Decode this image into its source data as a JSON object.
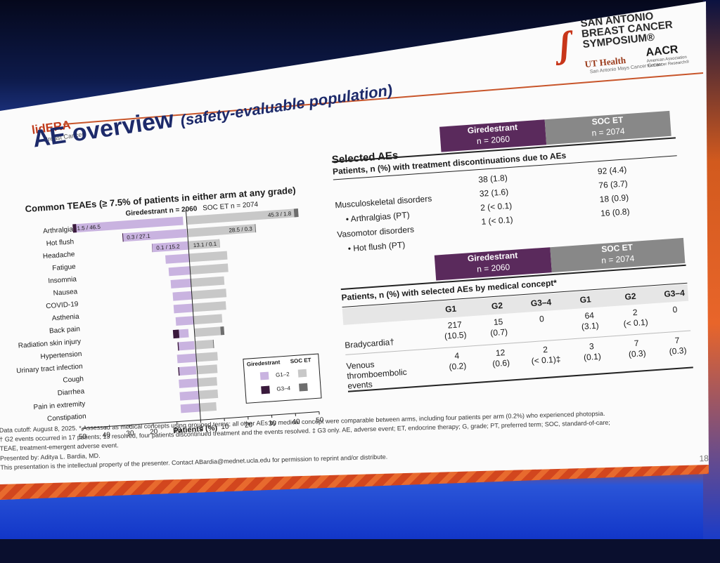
{
  "slide": {
    "brand": "lidERA",
    "brand_sub": "Breast Cancer",
    "title": "AE overview",
    "title_italic": "(safety-evaluable population)",
    "page_number": "18"
  },
  "sabcs": {
    "name_line1": "SAN ANTONIO",
    "name_line2": "BREAST CANCER",
    "name_line3": "SYMPOSIUM®",
    "uthealth": "UT Health",
    "uthealth_sub": "San Antonio Mays Cancer Center",
    "aacr": "AACR",
    "aacr_sub": "American Association for Cancer Research®"
  },
  "chart_data": {
    "type": "bar",
    "title": "Common TEAEs (≥ 7.5% of patients in either arm at any grade)",
    "xlabel": "Patients (%)",
    "xlim": [
      -50,
      50
    ],
    "xticks": [
      "50",
      "40",
      "30",
      "20",
      "10",
      "0",
      "10",
      "20",
      "30",
      "40",
      "50"
    ],
    "arm_left_label": "Giredestrant n = 2060",
    "arm_right_label": "SOC ET n = 2074",
    "legend": {
      "left_title": "Giredestrant",
      "right_title": "SOC ET",
      "g12_label": "G1–2",
      "g34_label": "G3–4"
    },
    "colors": {
      "gir_g12": "#c9b3e0",
      "gir_g34": "#3a1a3c",
      "soc_g12": "#c8c8c8",
      "soc_g34": "#6e6e6e"
    },
    "categories": [
      "Arthralgia",
      "Hot flush",
      "Headache",
      "Fatigue",
      "Insomnia",
      "Nausea",
      "COVID-19",
      "Asthenia",
      "Back pain",
      "Radiation skin injury",
      "Hypertension",
      "Urinary tract infection",
      "Cough",
      "Diarrhea",
      "Pain in extremity",
      "Constipation"
    ],
    "series": [
      {
        "name": "Giredestrant G1–2",
        "values": [
          46.5,
          27.1,
          15.2,
          10,
          9,
          8.5,
          8,
          8,
          7.5,
          6.5,
          7,
          8,
          7.5,
          8,
          8,
          8
        ]
      },
      {
        "name": "Giredestrant G3–4",
        "values": [
          1.5,
          0.3,
          0.1,
          0,
          0,
          0,
          0,
          0,
          0,
          2.5,
          0.4,
          0,
          0.4,
          0,
          0,
          0
        ]
      },
      {
        "name": "SOC ET G1–2",
        "values": [
          45.3,
          28.5,
          13.1,
          16,
          16,
          14,
          14.5,
          14,
          12,
          11,
          7.5,
          9,
          8.5,
          8,
          8,
          7
        ]
      },
      {
        "name": "SOC ET G3–4",
        "values": [
          1.8,
          0.3,
          0.1,
          0,
          0,
          0,
          0,
          0,
          0,
          1.5,
          0.3,
          0,
          0,
          0,
          0,
          0
        ]
      }
    ],
    "bar_labels": {
      "0": {
        "left": "1.5 / 46.5",
        "right": "45.3 / 1.8"
      },
      "1": {
        "left": "0.3 / 27.1",
        "right": "28.5 / 0.3"
      },
      "2": {
        "left": "0.1 / 15.2",
        "right": "13.1 / 0.1"
      }
    }
  },
  "table1": {
    "section_label": "Selected AEs",
    "gir_header_line1": "Giredestrant",
    "gir_header_line2": "n = 2060",
    "soc_header_line1": "SOC ET",
    "soc_header_line2": "n = 2074",
    "caption": "Patients, n (%) with treatment discontinuations due to AEs",
    "rows": [
      {
        "label": "",
        "gir": "38 (1.8)",
        "soc": "92 (4.4)"
      },
      {
        "label": "Musculoskeletal disorders",
        "gir": "32 (1.6)",
        "soc": "76 (3.7)"
      },
      {
        "label": "• Arthralgias (PT)",
        "gir": "2 (< 0.1)",
        "soc": "18 (0.9)"
      },
      {
        "label": "Vasomotor disorders",
        "gir": "1 (< 0.1)",
        "soc": "16 (0.8)"
      },
      {
        "label": "• Hot flush (PT)",
        "gir": "",
        "soc": ""
      }
    ]
  },
  "table2": {
    "gir_header_line1": "Giredestrant",
    "gir_header_line2": "n = 2060",
    "soc_header_line1": "SOC ET",
    "soc_header_line2": "n = 2074",
    "caption": "Patients, n (%) with selected AEs by medical concept*",
    "grade_headers": [
      "G1",
      "G2",
      "G3–4",
      "G1",
      "G2",
      "G3–4"
    ],
    "rows": [
      {
        "label": "Bradycardia†",
        "cells": [
          "217\n(10.5)",
          "15\n(0.7)",
          "0",
          "64\n(3.1)",
          "2\n(< 0.1)",
          "0"
        ]
      },
      {
        "label": "Venous\nthromboembolic\nevents",
        "cells": [
          "4\n(0.2)",
          "12\n(0.6)",
          "2\n(< 0.1)‡",
          "3\n(0.1)",
          "7\n(0.3)",
          "7\n(0.3)"
        ]
      }
    ]
  },
  "footnotes": {
    "line1": "Data cutoff: August 8, 2025. * Assessed as medical concepts using grouped terms; all other AEs by medical concept were comparable between arms, including four patients per arm (0.2%) who experienced photopsia.",
    "line2": "† G2 events occurred in 17 patients; 13 resolved, four patients discontinued treatment and the events resolved. ‡ G3 only. AE, adverse event; ET, endocrine therapy; G, grade; PT, preferred term; SOC, standard-of-care;",
    "line3": "TEAE, treatment-emergent adverse event.",
    "line4": "Presented by: Aditya L. Bardia, MD.",
    "line5": "This presentation is the intellectual property of the presenter. Contact ABardia@mednet.ucla.edu for permission to reprint and/or distribute."
  }
}
